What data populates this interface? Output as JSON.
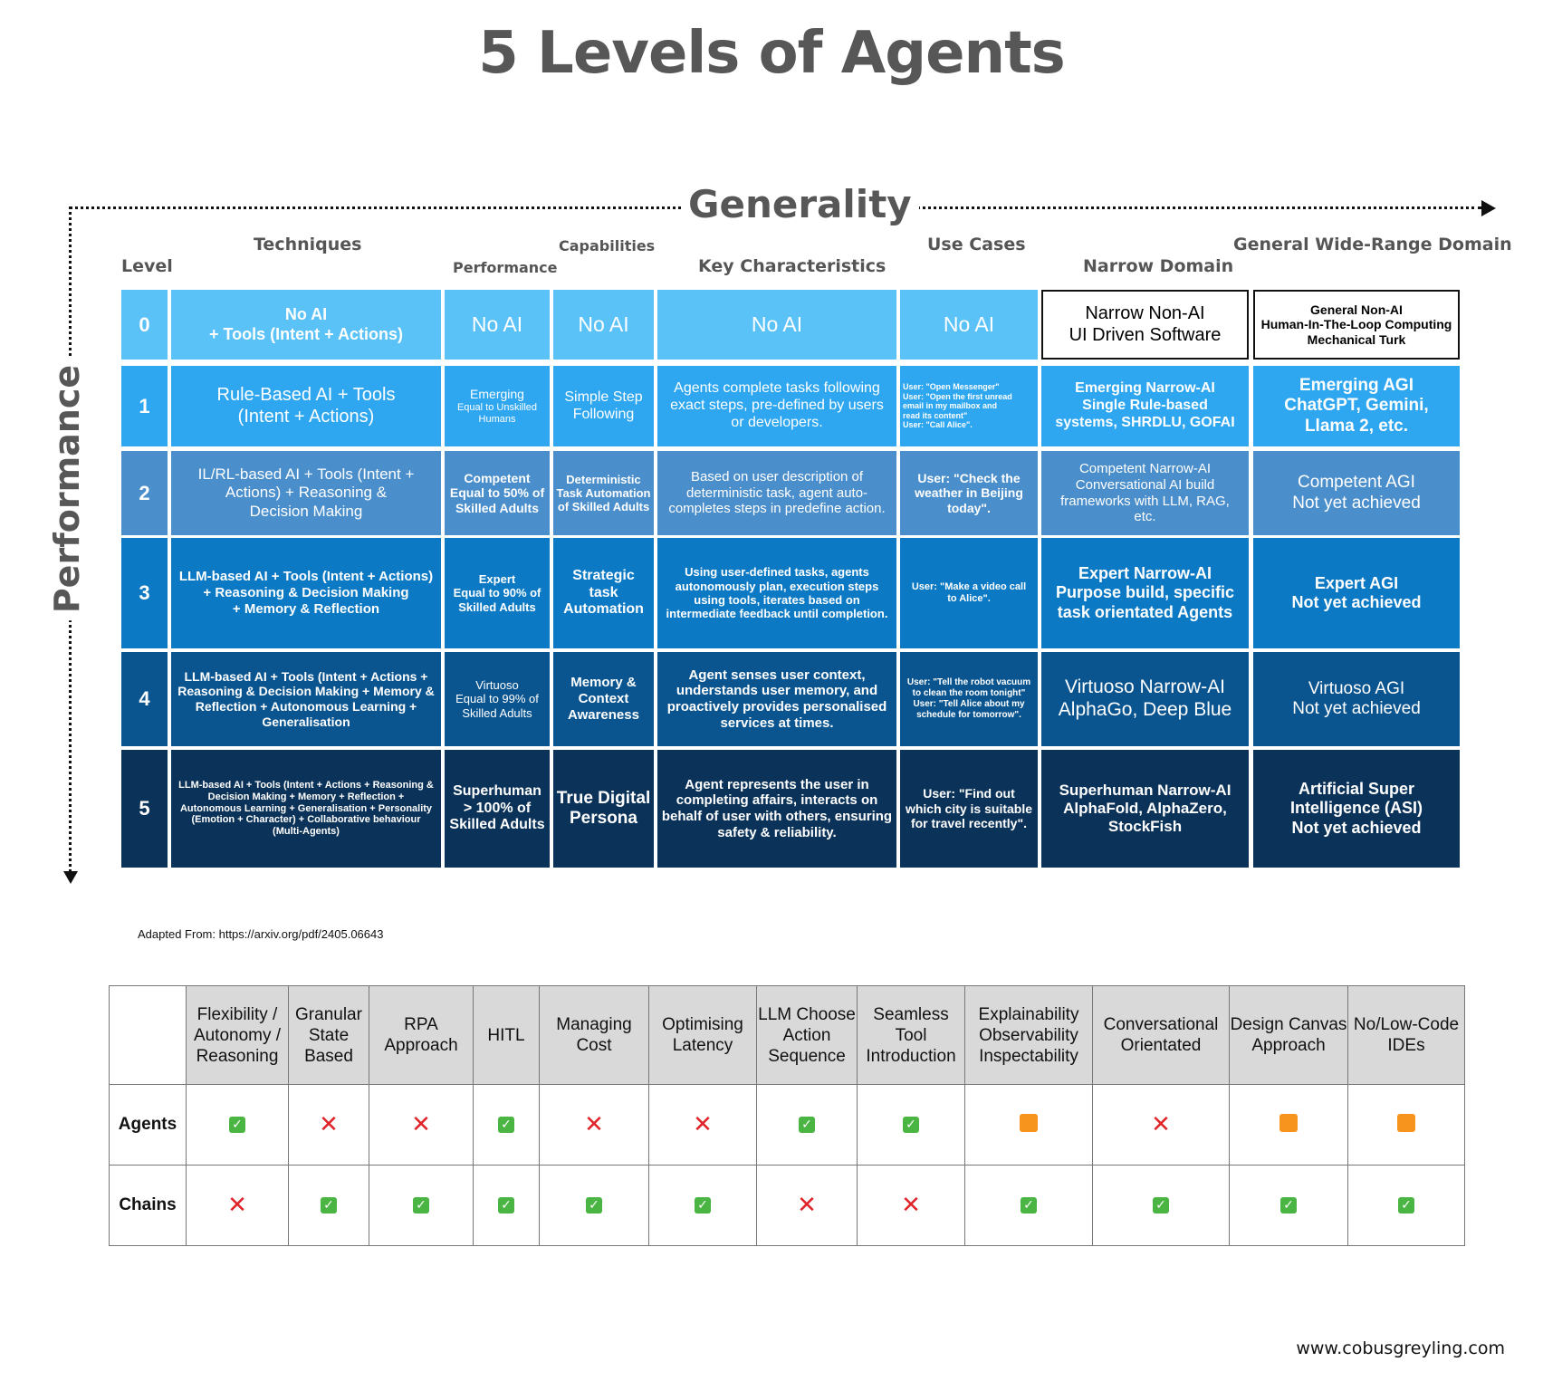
{
  "title": "5 Levels of Agents",
  "axes": {
    "horizontal": "Generality",
    "vertical": "Performance"
  },
  "column_headers": {
    "level": "Level",
    "techniques": "Techniques",
    "performance": "Performance",
    "capabilities": "Capabilities",
    "key_characteristics": "Key Characteristics",
    "use_cases": "Use Cases",
    "narrow_domain": "Narrow Domain",
    "general_domain": "General Wide-Range Domain"
  },
  "rows": [
    {
      "level": "0",
      "color": "#5bc2f8",
      "techniques": [
        "No AI",
        "+ Tools (Intent + Actions)"
      ],
      "performance": [
        "No AI"
      ],
      "capabilities": [
        "No AI"
      ],
      "characteristics": [
        "No AI"
      ],
      "use_cases": [
        "No AI"
      ],
      "narrow": [
        "Narrow Non-AI",
        "UI Driven Software"
      ],
      "general": [
        "General Non-AI",
        "Human-In-The-Loop Computing",
        "Mechanical Turk"
      ]
    },
    {
      "level": "1",
      "color": "#2ea6f0",
      "techniques": [
        "Rule-Based AI + Tools",
        "(Intent + Actions)"
      ],
      "performance": [
        "Emerging",
        "Equal to Unskilled",
        "Humans"
      ],
      "capabilities": [
        "Simple Step",
        "Following"
      ],
      "characteristics": [
        "Agents complete tasks following",
        "exact steps, pre-defined by users",
        "or developers."
      ],
      "use_cases": [
        "User: \"Open Messenger\"",
        "User: \"Open the first unread",
        "email in my mailbox and",
        "read its content\"",
        "User: \"Call Alice\"."
      ],
      "narrow": [
        "Emerging Narrow-AI",
        "Single Rule-based",
        "systems, SHRDLU, GOFAI"
      ],
      "general": [
        "Emerging AGI",
        "ChatGPT, Gemini,",
        "Llama 2, etc."
      ]
    },
    {
      "level": "2",
      "color": "#4a8ecb",
      "techniques": [
        "IL/RL-based AI + Tools (Intent +",
        "Actions) + Reasoning &",
        "Decision Making"
      ],
      "performance": [
        "Competent",
        "Equal to 50% of",
        "Skilled Adults"
      ],
      "capabilities": [
        "Deterministic",
        "Task Automation",
        "of Skilled Adults"
      ],
      "characteristics": [
        "Based on user description of",
        "deterministic task, agent auto-",
        "completes steps in predefine action."
      ],
      "use_cases": [
        "User: \"Check the",
        "weather in Beijing",
        "today\"."
      ],
      "narrow": [
        "Competent Narrow-AI",
        "Conversational AI build",
        "frameworks with LLM, RAG,",
        "etc."
      ],
      "general": [
        "Competent AGI",
        "Not yet achieved"
      ]
    },
    {
      "level": "3",
      "color": "#0b79c4",
      "techniques": [
        "LLM-based AI + Tools (Intent + Actions)",
        "+ Reasoning & Decision Making",
        "+ Memory & Reflection"
      ],
      "performance": [
        "Expert",
        "Equal to 90% of",
        "Skilled Adults"
      ],
      "capabilities": [
        "Strategic",
        "task",
        "Automation"
      ],
      "characteristics": [
        "Using user-defined tasks, agents",
        "autonomously plan, execution steps",
        "using tools, iterates based on",
        "intermediate feedback until completion."
      ],
      "use_cases": [
        "User: \"Make a video call",
        "to Alice\"."
      ],
      "narrow": [
        "Expert Narrow-AI",
        "Purpose build, specific",
        "task orientated Agents"
      ],
      "general": [
        "Expert AGI",
        "Not yet achieved"
      ]
    },
    {
      "level": "4",
      "color": "#0a5590",
      "techniques": [
        "LLM-based AI + Tools (Intent + Actions +",
        "Reasoning & Decision Making + Memory &",
        "Reflection + Autonomous Learning +",
        "Generalisation"
      ],
      "performance": [
        "Virtuoso",
        "Equal to 99% of",
        "Skilled Adults"
      ],
      "capabilities": [
        "Memory &",
        "Context",
        "Awareness"
      ],
      "characteristics": [
        "Agent senses user context,",
        "understands user memory, and",
        "proactively provides personalised",
        "services at times."
      ],
      "use_cases": [
        "User: \"Tell the robot vacuum",
        "to clean the room tonight\"",
        "User: \"Tell Alice about my",
        "schedule for tomorrow\"."
      ],
      "narrow": [
        "Virtuoso Narrow-AI",
        "AlphaGo, Deep Blue"
      ],
      "general": [
        "Virtuoso AGI",
        "Not yet achieved"
      ]
    },
    {
      "level": "5",
      "color": "#0b3258",
      "techniques": [
        "LLM-based AI + Tools (Intent + Actions + Reasoning &",
        "Decision Making + Memory + Reflection +",
        "Autonomous Learning + Generalisation + Personality",
        "(Emotion + Character) + Collaborative behaviour",
        "(Multi-Agents)"
      ],
      "performance": [
        "Superhuman",
        "> 100% of",
        "Skilled Adults"
      ],
      "capabilities": [
        "True Digital",
        "Persona"
      ],
      "characteristics": [
        "Agent represents the user in",
        "completing affairs, interacts on",
        "behalf of user with others, ensuring",
        "safety & reliability."
      ],
      "use_cases": [
        "User: \"Find out",
        "which city is suitable",
        "for travel recently\"."
      ],
      "narrow": [
        "Superhuman Narrow-AI",
        "AlphaFold, AlphaZero,",
        "StockFish"
      ],
      "general": [
        "Artificial Super",
        "Intelligence (ASI)",
        "Not yet achieved"
      ]
    }
  ],
  "source_note": "Adapted From: https://arxiv.org/pdf/2405.06643",
  "comparison": {
    "columns": [
      "Flexibility / Autonomy / Reasoning",
      "Granular State Based",
      "RPA Approach",
      "HITL",
      "Managing Cost",
      "Optimising Latency",
      "LLM Choose Action Sequence",
      "Seamless Tool Introduction",
      "Explainability Observability Inspectability",
      "Conversational Orientated",
      "Design Canvas Approach",
      "No/Low-Code IDEs"
    ],
    "rows": [
      {
        "label": "Agents",
        "values": [
          "check",
          "cross",
          "cross",
          "check",
          "cross",
          "cross",
          "check",
          "check",
          "partial",
          "cross",
          "partial",
          "partial"
        ]
      },
      {
        "label": "Chains",
        "values": [
          "cross",
          "check",
          "check",
          "check",
          "check",
          "check",
          "cross",
          "cross",
          "check",
          "check",
          "check",
          "check"
        ]
      }
    ]
  },
  "footer": "www.cobusgreyling.com"
}
